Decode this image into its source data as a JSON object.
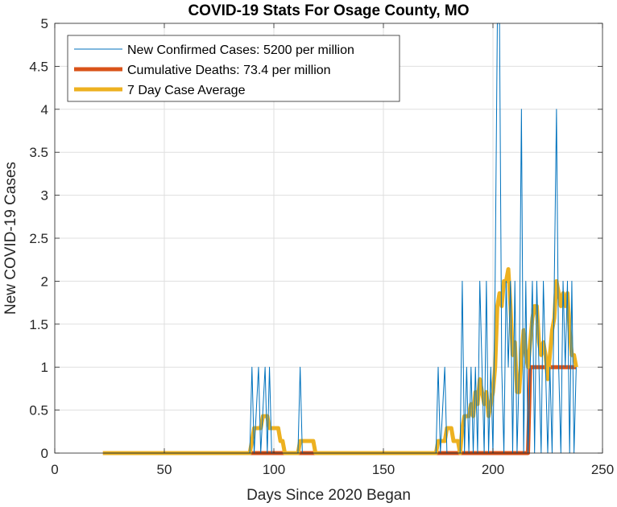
{
  "chart_data": {
    "type": "line",
    "title": "COVID-19 Stats For Osage County, MO",
    "xlabel": "Days Since 2020 Began",
    "ylabel": "New COVID-19 Cases",
    "xlim": [
      0,
      250
    ],
    "ylim": [
      0,
      5
    ],
    "xticks": [
      0,
      50,
      100,
      150,
      200,
      250
    ],
    "yticks": [
      0,
      0.5,
      1,
      1.5,
      2,
      2.5,
      3,
      3.5,
      4,
      4.5,
      5
    ],
    "xtick_labels": [
      "0",
      "50",
      "100",
      "150",
      "200",
      "250"
    ],
    "ytick_labels": [
      "0",
      "0.5",
      "1",
      "1.5",
      "2",
      "2.5",
      "3",
      "3.5",
      "4",
      "4.5",
      "5"
    ],
    "grid": true,
    "legend_position": "top-left",
    "series": [
      {
        "name": "New Confirmed Cases: 5200 per million",
        "color": "#0072BD",
        "points": [
          [
            22,
            0
          ],
          [
            89,
            0
          ],
          [
            90,
            1
          ],
          [
            91,
            0
          ],
          [
            93,
            1
          ],
          [
            94,
            0
          ],
          [
            96,
            1
          ],
          [
            97,
            0
          ],
          [
            98,
            1
          ],
          [
            99,
            0
          ],
          [
            111,
            0
          ],
          [
            112,
            1
          ],
          [
            113,
            0
          ],
          [
            174,
            0
          ],
          [
            175,
            1
          ],
          [
            176,
            0
          ],
          [
            178,
            1
          ],
          [
            179,
            0
          ],
          [
            185,
            0
          ],
          [
            186,
            2
          ],
          [
            187,
            0
          ],
          [
            188,
            1
          ],
          [
            189,
            0
          ],
          [
            190,
            1
          ],
          [
            191,
            0
          ],
          [
            192,
            1
          ],
          [
            193,
            0
          ],
          [
            194,
            2
          ],
          [
            195,
            1
          ],
          [
            196,
            0
          ],
          [
            197,
            2
          ],
          [
            198,
            0
          ],
          [
            199,
            1
          ],
          [
            200,
            0
          ],
          [
            201,
            2
          ],
          [
            202,
            5
          ],
          [
            203,
            5
          ],
          [
            204,
            1
          ],
          [
            205,
            0
          ],
          [
            206,
            2
          ],
          [
            207,
            1
          ],
          [
            208,
            2
          ],
          [
            209,
            0
          ],
          [
            210,
            2
          ],
          [
            211,
            0
          ],
          [
            212,
            1
          ],
          [
            213,
            4
          ],
          [
            214,
            0
          ],
          [
            215,
            2
          ],
          [
            216,
            0
          ],
          [
            217,
            1
          ],
          [
            218,
            2
          ],
          [
            219,
            0
          ],
          [
            220,
            2
          ],
          [
            221,
            1
          ],
          [
            222,
            0
          ],
          [
            223,
            2
          ],
          [
            224,
            1
          ],
          [
            225,
            0
          ],
          [
            226,
            1
          ],
          [
            227,
            0
          ],
          [
            228,
            2
          ],
          [
            229,
            4
          ],
          [
            230,
            1
          ],
          [
            231,
            0
          ],
          [
            232,
            2
          ],
          [
            233,
            1
          ],
          [
            234,
            2
          ],
          [
            235,
            0
          ],
          [
            236,
            2
          ],
          [
            237,
            0
          ],
          [
            238,
            1
          ]
        ]
      },
      {
        "name": "Cumulative Deaths: 73.4 per million",
        "color": "#D95319",
        "points": [
          [
            22,
            0
          ],
          [
            216,
            0
          ],
          [
            217,
            1
          ],
          [
            238,
            1
          ]
        ]
      },
      {
        "name": "7 Day Case Average",
        "color": "#EDB120",
        "points": [
          [
            22,
            0
          ],
          [
            89,
            0
          ],
          [
            90,
            0.14
          ],
          [
            91,
            0.29
          ],
          [
            93,
            0.29
          ],
          [
            94,
            0.29
          ],
          [
            95,
            0.43
          ],
          [
            96,
            0.43
          ],
          [
            97,
            0.43
          ],
          [
            98,
            0.29
          ],
          [
            99,
            0.29
          ],
          [
            100,
            0.29
          ],
          [
            102,
            0.29
          ],
          [
            103,
            0.14
          ],
          [
            104,
            0.14
          ],
          [
            105,
            0
          ],
          [
            111,
            0
          ],
          [
            112,
            0.14
          ],
          [
            117,
            0.14
          ],
          [
            118,
            0.14
          ],
          [
            119,
            0
          ],
          [
            174,
            0
          ],
          [
            175,
            0.14
          ],
          [
            178,
            0.14
          ],
          [
            179,
            0.29
          ],
          [
            181,
            0.29
          ],
          [
            182,
            0.14
          ],
          [
            184,
            0.14
          ],
          [
            185,
            0
          ],
          [
            186,
            0.29
          ],
          [
            187,
            0.43
          ],
          [
            189,
            0.43
          ],
          [
            190,
            0.57
          ],
          [
            191,
            0.43
          ],
          [
            192,
            0.71
          ],
          [
            193,
            0.57
          ],
          [
            194,
            0.86
          ],
          [
            195,
            0.71
          ],
          [
            196,
            0.57
          ],
          [
            197,
            0.71
          ],
          [
            198,
            0.43
          ],
          [
            199,
            0.57
          ],
          [
            200,
            0.71
          ],
          [
            201,
            1
          ],
          [
            202,
            1.71
          ],
          [
            203,
            1.86
          ],
          [
            204,
            1.71
          ],
          [
            205,
            2
          ],
          [
            206,
            2
          ],
          [
            207,
            2.14
          ],
          [
            208,
            1.71
          ],
          [
            209,
            1.14
          ],
          [
            210,
            1.29
          ],
          [
            211,
            0.71
          ],
          [
            212,
            0.71
          ],
          [
            213,
            1.14
          ],
          [
            214,
            1.43
          ],
          [
            215,
            1.14
          ],
          [
            216,
            1
          ],
          [
            217,
            1.29
          ],
          [
            218,
            1.57
          ],
          [
            219,
            1.71
          ],
          [
            220,
            1.71
          ],
          [
            221,
            1.29
          ],
          [
            222,
            1.14
          ],
          [
            223,
            1.29
          ],
          [
            224,
            1.14
          ],
          [
            225,
            0.86
          ],
          [
            226,
            1.14
          ],
          [
            227,
            1.43
          ],
          [
            228,
            1.57
          ],
          [
            229,
            2
          ],
          [
            230,
            1.86
          ],
          [
            231,
            1.71
          ],
          [
            232,
            1.86
          ],
          [
            233,
            1.71
          ],
          [
            234,
            1.86
          ],
          [
            235,
            1.43
          ],
          [
            236,
            1.14
          ],
          [
            237,
            1.14
          ],
          [
            238,
            1
          ]
        ]
      }
    ]
  }
}
